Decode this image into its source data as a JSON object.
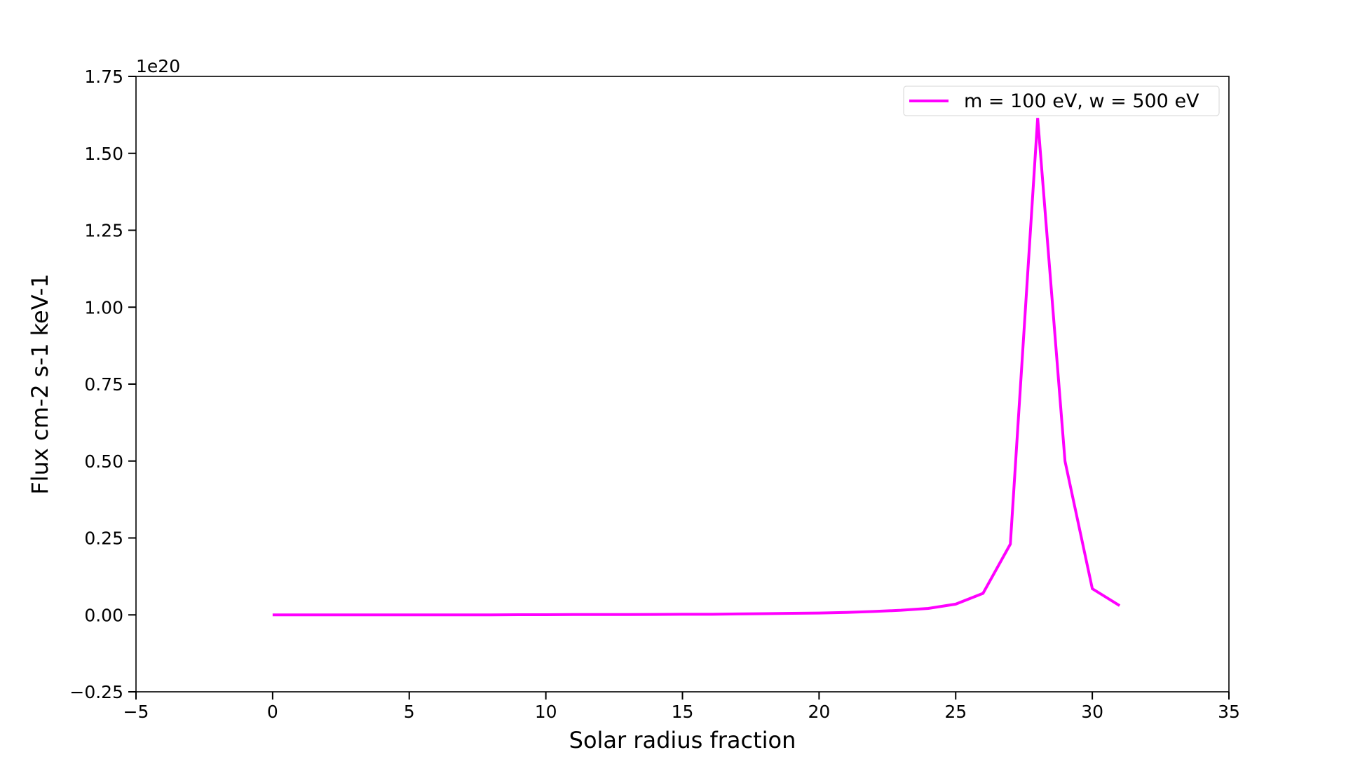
{
  "chart_data": {
    "type": "line",
    "title": "",
    "xlabel": "Solar radius fraction",
    "ylabel": "Flux cm-2 s-1 keV-1",
    "y_offset_label": "1e20",
    "xlim": [
      -5,
      35
    ],
    "ylim": [
      -0.25,
      1.75
    ],
    "y_scale_factor": 1e+20,
    "xticks": [
      -5,
      0,
      5,
      10,
      15,
      20,
      25,
      30,
      35
    ],
    "xtick_labels": [
      "−5",
      "0",
      "5",
      "10",
      "15",
      "20",
      "25",
      "30",
      "35"
    ],
    "yticks": [
      -0.25,
      0,
      0.25,
      0.5,
      0.75,
      1.0,
      1.25,
      1.5,
      1.75
    ],
    "ytick_labels": [
      "−0.25",
      "0.00",
      "0.25",
      "0.50",
      "0.75",
      "1.00",
      "1.25",
      "1.50",
      "1.75"
    ],
    "grid": false,
    "legend_position": "top-right",
    "series": [
      {
        "name": "m = 100 eV, w = 500 eV",
        "color": "#ff00ff",
        "x": [
          0,
          1,
          2,
          3,
          4,
          5,
          6,
          7,
          8,
          9,
          10,
          11,
          12,
          13,
          14,
          15,
          16,
          17,
          18,
          19,
          20,
          21,
          22,
          23,
          24,
          25,
          26,
          27,
          28,
          29,
          30,
          31
        ],
        "y": [
          0.0,
          0.0,
          0.0,
          0.0,
          0.0,
          0.0,
          0.0,
          0.0,
          0.0,
          0.0005,
          0.0005,
          0.001,
          0.001,
          0.001,
          0.0015,
          0.002,
          0.002,
          0.003,
          0.004,
          0.005,
          0.006,
          0.008,
          0.011,
          0.015,
          0.021,
          0.035,
          0.07,
          0.23,
          1.615,
          0.5,
          0.085,
          0.03
        ]
      }
    ]
  }
}
